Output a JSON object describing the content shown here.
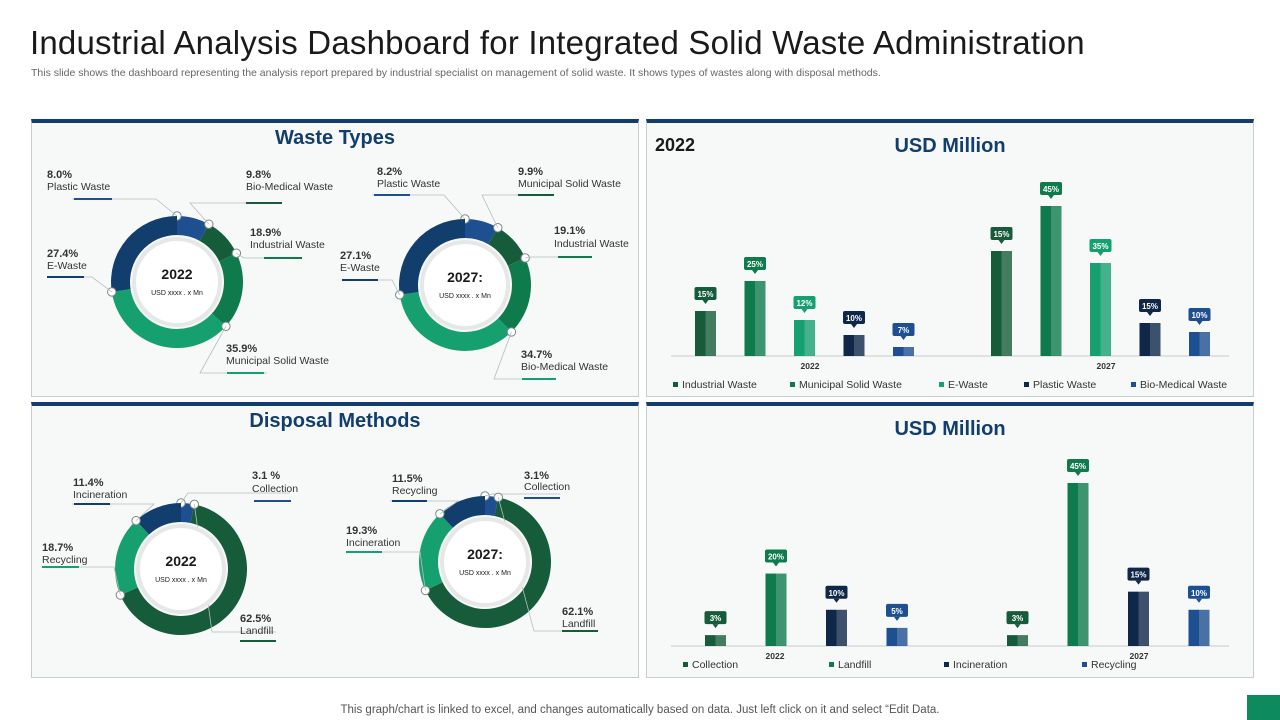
{
  "page": {
    "title": "Industrial Analysis Dashboard for Integrated Solid Waste Administration",
    "subtitle": "This slide shows the dashboard representing the analysis report prepared by industrial specialist on management of solid waste. It shows types of wastes along with disposal methods.",
    "footer": "This graph/chart is linked to excel,  and changes automatically based on data. Just left click on it and select “Edit Data."
  },
  "colors": {
    "navy": "#123e6e",
    "dark_green": "#175c3a",
    "green": "#0f7a4c",
    "light_green": "#16a070",
    "dark_navy": "#0f2748",
    "blue": "#1d4f91"
  },
  "panels": {
    "waste_types_title": "Waste Types",
    "disposal_title": "Disposal Methods",
    "top_right_title": "USD Million",
    "top_right_year": "2022",
    "bottom_right_title": "USD Million"
  },
  "chart_data": [
    {
      "type": "pie",
      "variant": "donut",
      "center_label": "2022",
      "center_sublabel": "USD xxxx  . x Mn",
      "slices": [
        {
          "label": "Plastic Waste",
          "value": 8.0,
          "display": "8.0%",
          "color": "#1d4f91"
        },
        {
          "label": "Bio-Medical Waste",
          "value": 9.8,
          "display": "9.8%",
          "color": "#175c3a"
        },
        {
          "label": "Industrial Waste",
          "value": 18.9,
          "display": "18.9%",
          "color": "#0f7a4c"
        },
        {
          "label": "Municipal  Solid Waste",
          "value": 35.9,
          "display": "35.9%",
          "color": "#16a070"
        },
        {
          "label": "E-Waste",
          "value": 27.4,
          "display": "27.4%",
          "color": "#123e6e"
        }
      ]
    },
    {
      "type": "pie",
      "variant": "donut",
      "center_label": "2027:",
      "center_sublabel": "USD xxxx  . x Mn",
      "slices": [
        {
          "label": "Plastic Waste",
          "value": 8.2,
          "display": "8.2%",
          "color": "#1d4f91"
        },
        {
          "label": "Municipal Solid Waste",
          "value": 9.9,
          "display": "9.9%",
          "color": "#175c3a"
        },
        {
          "label": "Industrial Waste",
          "value": 19.1,
          "display": "19.1%",
          "color": "#0f7a4c"
        },
        {
          "label": "Bio-Medical Waste",
          "value": 34.7,
          "display": "34.7%",
          "color": "#16a070"
        },
        {
          "label": "E-Waste",
          "value": 27.1,
          "display": "27.1%",
          "color": "#123e6e"
        }
      ]
    },
    {
      "type": "bar",
      "title": "USD Million",
      "categories": [
        "2022",
        "2027"
      ],
      "series": [
        {
          "name": "Industrial Waste",
          "values": [
            15,
            15
          ],
          "color": "#175c3a"
        },
        {
          "name": "Municipal Solid Waste",
          "values": [
            25,
            45
          ],
          "color": "#0f7a4c"
        },
        {
          "name": "E-Waste",
          "values": [
            12,
            35
          ],
          "color": "#16a070"
        },
        {
          "name": "Plastic Waste",
          "values": [
            10,
            15
          ],
          "color": "#0f2748"
        },
        {
          "name": "Bio-Medical Waste",
          "values": [
            7,
            10
          ],
          "color": "#1d4f91"
        }
      ],
      "bar_heights_relative": [
        [
          15,
          35
        ],
        [
          25,
          50
        ],
        [
          12,
          31
        ],
        [
          7,
          11
        ],
        [
          3,
          8
        ]
      ],
      "value_suffix": "%",
      "legend": "bottom"
    },
    {
      "type": "pie",
      "variant": "donut",
      "center_label": "2022",
      "center_sublabel": "USD xxxx  . x Mn",
      "slices": [
        {
          "label": "Collection",
          "value": 3.1,
          "display": "3.1 %",
          "color": "#1d4f91"
        },
        {
          "label": "Landfill",
          "value": 62.5,
          "display": "62.5%",
          "color": "#175c3a"
        },
        {
          "label": "Recycling",
          "value": 18.7,
          "display": "18.7%",
          "color": "#16a070"
        },
        {
          "label": "Incineration",
          "value": 11.4,
          "display": "11.4%",
          "color": "#123e6e"
        }
      ]
    },
    {
      "type": "pie",
      "variant": "donut",
      "center_label": "2027:",
      "center_sublabel": "USD xxxx  . x Mn",
      "slices": [
        {
          "label": "Collection",
          "value": 3.1,
          "display": "3.1%",
          "color": "#1d4f91"
        },
        {
          "label": "Landfill",
          "value": 62.1,
          "display": "62.1%",
          "color": "#175c3a"
        },
        {
          "label": "Incineration",
          "value": 19.3,
          "display": "19.3%",
          "color": "#16a070"
        },
        {
          "label": "Recycling",
          "value": 11.5,
          "display": "11.5%",
          "color": "#123e6e"
        }
      ]
    },
    {
      "type": "bar",
      "title": "USD Million",
      "categories": [
        "2022",
        "2027"
      ],
      "series": [
        {
          "name": "Collection",
          "values": [
            3,
            3
          ],
          "color": "#175c3a"
        },
        {
          "name": "Landfill",
          "values": [
            20,
            45
          ],
          "color": "#0f7a4c"
        },
        {
          "name": "Incineration",
          "values": [
            10,
            15
          ],
          "color": "#0f2748"
        },
        {
          "name": "Recycling",
          "values": [
            5,
            10
          ],
          "color": "#1d4f91"
        }
      ],
      "value_suffix": "%",
      "legend": "bottom"
    }
  ]
}
